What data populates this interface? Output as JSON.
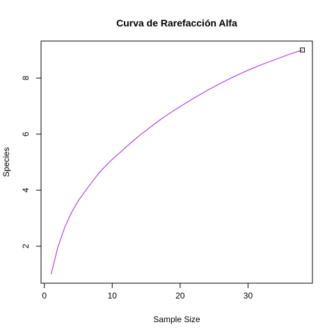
{
  "chart_data": {
    "type": "line",
    "title": "Curva de Rarefacción Alfa",
    "xlabel": "Sample Size",
    "ylabel": "Species",
    "xlim": [
      -0.48,
      39.48
    ],
    "ylim": [
      0.68,
      9.32
    ],
    "xticks": [
      0,
      10,
      20,
      30
    ],
    "yticks": [
      2,
      4,
      6,
      8
    ],
    "grid": false,
    "series": [
      {
        "color": "#a020f0",
        "x": [
          1,
          2,
          3,
          4,
          5,
          6,
          7,
          8,
          9,
          10,
          11,
          12,
          13,
          14,
          15,
          16,
          17,
          18,
          19,
          20,
          21,
          22,
          23,
          24,
          25,
          26,
          27,
          28,
          29,
          30,
          31,
          32,
          33,
          34,
          35,
          36,
          37,
          38
        ],
        "y": [
          1.0,
          1.97,
          2.67,
          3.2,
          3.62,
          3.96,
          4.28,
          4.6,
          4.86,
          5.1,
          5.31,
          5.53,
          5.74,
          5.95,
          6.13,
          6.32,
          6.5,
          6.67,
          6.83,
          6.98,
          7.13,
          7.28,
          7.42,
          7.56,
          7.69,
          7.82,
          7.94,
          8.06,
          8.17,
          8.28,
          8.38,
          8.48,
          8.57,
          8.66,
          8.75,
          8.84,
          8.92,
          9.0
        ]
      }
    ],
    "endpoint_marker": {
      "x": 38,
      "y": 9.0,
      "shape": "square"
    }
  }
}
